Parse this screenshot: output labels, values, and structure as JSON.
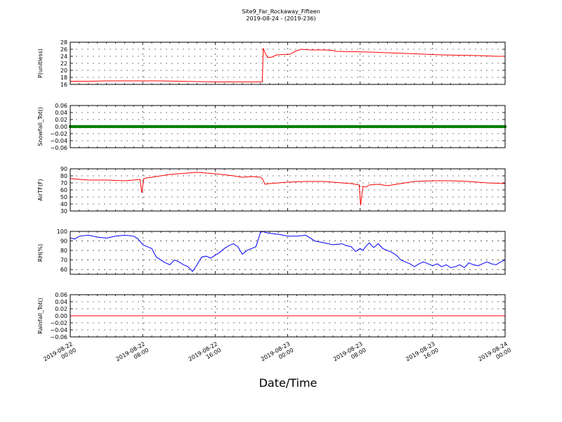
{
  "figure": {
    "title_line1": "Site9_Far_Rockaway_Fifteen",
    "title_line2": "2019-08-24 - (2019-236)",
    "xlabel": "Date/Time",
    "x_tick_labels": [
      [
        "2019-08-22",
        "00:00"
      ],
      [
        "2019-08-22",
        "08:00"
      ],
      [
        "2019-08-22",
        "16:00"
      ],
      [
        "2019-08-23",
        "00:00"
      ],
      [
        "2019-08-23",
        "08:00"
      ],
      [
        "2019-08-23",
        "16:00"
      ],
      [
        "2019-08-24",
        "00:00"
      ]
    ]
  },
  "chart_data": [
    {
      "type": "line",
      "ylabel": "P(unitless)",
      "ylim": [
        16,
        28
      ],
      "yticks": [
        16,
        18,
        20,
        22,
        24,
        26,
        28
      ],
      "ytick_labels": [
        "16",
        "18",
        "20",
        "22",
        "24",
        "26",
        "28"
      ],
      "xlim_hours": [
        0,
        48
      ],
      "grid": true,
      "color": "#ff0000",
      "x_hours": [
        0,
        2,
        4,
        6,
        8,
        10,
        12,
        14,
        16,
        18,
        20,
        21.2,
        21.3,
        21.5,
        21.8,
        22.3,
        22.8,
        23.5,
        24.3,
        24.8,
        25.5,
        26.5,
        28,
        29,
        29.3,
        31,
        33,
        35,
        37,
        39,
        41,
        43,
        45,
        47,
        48
      ],
      "y": [
        16.9,
        16.9,
        17.0,
        17.0,
        17.0,
        17.0,
        16.9,
        16.8,
        16.7,
        16.7,
        16.7,
        16.7,
        26.3,
        25.0,
        23.6,
        23.8,
        24.4,
        24.5,
        24.6,
        25.4,
        26.0,
        25.8,
        25.8,
        25.7,
        25.4,
        25.3,
        25.2,
        25.0,
        24.8,
        24.6,
        24.4,
        24.3,
        24.2,
        24.0,
        24.0
      ]
    },
    {
      "type": "line",
      "ylabel": "Snowfall_Tot()",
      "ylim": [
        -0.06,
        0.06
      ],
      "yticks": [
        -0.06,
        -0.04,
        -0.02,
        0.0,
        0.02,
        0.04,
        0.06
      ],
      "ytick_labels": [
        "−0.06",
        "−0.04",
        "−0.02",
        "0.00",
        "0.02",
        "0.04",
        "0.06"
      ],
      "xlim_hours": [
        0,
        48
      ],
      "grid": true,
      "color": "#008000",
      "markers": true,
      "x_hours": [
        0,
        48
      ],
      "y": [
        0,
        0
      ]
    },
    {
      "type": "line",
      "ylabel": "AirTF(F)",
      "ylim": [
        30,
        90
      ],
      "yticks": [
        30,
        40,
        50,
        60,
        70,
        80,
        90
      ],
      "ytick_labels": [
        "30",
        "40",
        "50",
        "60",
        "70",
        "80",
        "90"
      ],
      "xlim_hours": [
        0,
        48
      ],
      "grid": true,
      "color": "#ff0000",
      "x_hours": [
        0,
        1,
        2,
        4,
        6,
        7,
        7.7,
        7.9,
        8.1,
        8.4,
        9,
        10,
        11,
        12,
        13,
        14,
        15,
        16,
        18,
        19,
        20,
        21,
        21.2,
        21.5,
        22,
        23,
        24,
        26,
        28,
        29,
        30,
        31,
        31.9,
        32.05,
        32.3,
        32.6,
        33,
        34,
        35,
        36,
        37,
        38,
        40,
        42,
        44,
        46,
        48
      ],
      "y": [
        76,
        75,
        74,
        74,
        73,
        74,
        75,
        56,
        76,
        77,
        78,
        80,
        82,
        83,
        84,
        85,
        84,
        83,
        80,
        78,
        79,
        78,
        76,
        68,
        69,
        70,
        71,
        72,
        72,
        71,
        70,
        69,
        67,
        38,
        65,
        64,
        67,
        68,
        66,
        68,
        70,
        72,
        73,
        73,
        72,
        70,
        69
      ]
    },
    {
      "type": "line",
      "ylabel": "RH(%)",
      "ylim": [
        55,
        100
      ],
      "yticks": [
        60,
        70,
        80,
        90,
        100
      ],
      "ytick_labels": [
        "60",
        "70",
        "80",
        "90",
        "100"
      ],
      "xlim_hours": [
        0,
        48
      ],
      "grid": true,
      "color": "#0000ff",
      "x_hours": [
        0,
        0.5,
        1,
        2,
        3,
        4,
        5,
        6,
        7,
        7.5,
        8,
        8.5,
        9,
        9.5,
        10,
        10.5,
        11,
        11.5,
        12,
        12.5,
        13,
        13.5,
        14,
        14.5,
        15,
        15.5,
        16,
        16.5,
        17,
        17.5,
        18,
        18.5,
        19,
        19.5,
        20,
        20.5,
        21,
        21.3,
        21.5,
        22,
        23,
        24,
        25,
        26,
        27,
        28,
        29,
        30,
        30.5,
        31,
        31.5,
        32,
        32.3,
        32.6,
        33,
        33.5,
        34,
        34.5,
        35,
        35.5,
        36,
        36.5,
        37,
        37.5,
        38,
        38.5,
        39,
        39.5,
        40,
        40.5,
        41,
        41.5,
        42,
        42.5,
        43,
        43.5,
        44,
        44.5,
        45,
        45.5,
        46,
        46.5,
        47,
        47.5,
        48
      ],
      "y": [
        93,
        92,
        95,
        96,
        94,
        93,
        95,
        96,
        95,
        92,
        86,
        84,
        82,
        73,
        70,
        67,
        65,
        70,
        68,
        65,
        63,
        58,
        65,
        73,
        74,
        72,
        75,
        78,
        82,
        85,
        87,
        84,
        76,
        80,
        82,
        84,
        99,
        100,
        99,
        98,
        97,
        95,
        95,
        96,
        90,
        88,
        86,
        87,
        85,
        84,
        79,
        82,
        80,
        84,
        88,
        83,
        87,
        82,
        80,
        78,
        75,
        70,
        68,
        66,
        63,
        66,
        68,
        66,
        64,
        66,
        63,
        65,
        62,
        63,
        65,
        62,
        67,
        65,
        64,
        66,
        68,
        66,
        65,
        68,
        70
      ]
    },
    {
      "type": "line",
      "ylabel": "Rainfall_Tot()",
      "ylim": [
        -0.06,
        0.06
      ],
      "yticks": [
        -0.06,
        -0.04,
        -0.02,
        0.0,
        0.02,
        0.04,
        0.06
      ],
      "ytick_labels": [
        "−0.06",
        "−0.04",
        "−0.02",
        "0.00",
        "0.02",
        "0.04",
        "0.06"
      ],
      "xlim_hours": [
        0,
        48
      ],
      "grid": true,
      "color": "#ff0000",
      "x_hours": [
        0,
        48
      ],
      "y": [
        0,
        0
      ]
    }
  ]
}
